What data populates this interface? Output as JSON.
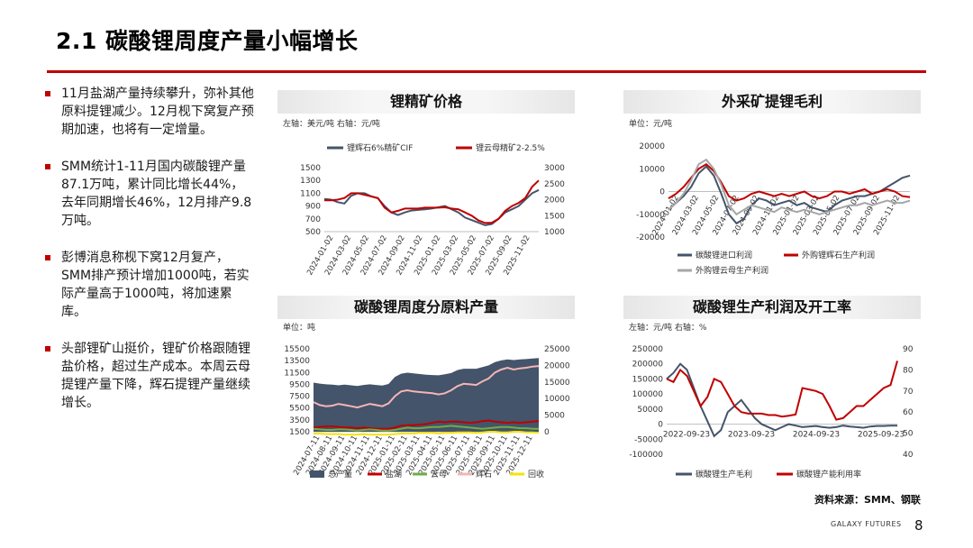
{
  "page": {
    "title": "2.1 碳酸锂周度产量小幅增长",
    "source": "资料来源：SMM、钢联",
    "company": "GALAXY FUTURES",
    "page_number": "8"
  },
  "bullets": [
    "11月盐湖产量持续攀升，弥补其他原料提锂减少。12月枧下窝复产预期加速，也将有一定增量。",
    "SMM统计1-11月国内碳酸锂产量87.1万吨，累计同比增长44%，去年同期增长46%，12月排产9.8万吨。",
    "彭博消息称枧下窝12月复产，SMM排产预计增加1000吨，若实际产量高于1000吨，将加速累库。",
    "头部锂矿山挺价，锂矿价格跟随锂盐价格，超过生产成本。本周云母提锂产量下降，辉石提锂产量继续增长。"
  ],
  "colors": {
    "accent": "#c00000",
    "dark": "#44546a",
    "green": "#70ad47",
    "pink": "#f4b6b6",
    "yellow": "#f5e20a",
    "grey": "#a6a6a6"
  },
  "chart_data": [
    {
      "id": "ore",
      "type": "line",
      "title": "锂精矿价格",
      "unit_note": "左轴：美元/吨  右轴：元/吨",
      "x_ticks": [
        "2024-01-02",
        "2024-03-02",
        "2024-05-02",
        "2024-07-02",
        "2024-09-02",
        "2024-11-02",
        "2025-01-02",
        "2025-03-02",
        "2025-05-02",
        "2025-07-02",
        "2025-09-02",
        "2025-11-02"
      ],
      "y_left_ticks": [
        "1500",
        "1300",
        "1100",
        "900",
        "700",
        "500"
      ],
      "y_right_ticks": [
        "3000",
        "2500",
        "2000",
        "1500",
        "1000"
      ],
      "ylim_left": [
        500,
        1500
      ],
      "ylim_right": [
        1000,
        3000
      ],
      "series": [
        {
          "name": "锂辉石6%精矿CIF",
          "axis": "left",
          "color": "#44546a",
          "values": [
            1010,
            1000,
            960,
            940,
            1060,
            1100,
            1100,
            1050,
            1020,
            900,
            800,
            760,
            800,
            830,
            840,
            850,
            860,
            880,
            900,
            850,
            800,
            720,
            680,
            640,
            600,
            620,
            700,
            800,
            850,
            900,
            1000,
            1100,
            1150
          ]
        },
        {
          "name": "锂云母精矿2-2.5%",
          "axis": "right",
          "color": "#c00000",
          "values": [
            1980,
            1980,
            2000,
            2050,
            2200,
            2200,
            2150,
            2100,
            2050,
            1750,
            1600,
            1650,
            1720,
            1720,
            1720,
            1750,
            1750,
            1750,
            1760,
            1720,
            1700,
            1600,
            1500,
            1350,
            1270,
            1280,
            1400,
            1650,
            1800,
            1900,
            2050,
            2400,
            2600
          ]
        }
      ]
    },
    {
      "id": "margin",
      "type": "line",
      "title": "外采矿提锂毛利",
      "unit_note": "单位：元/吨",
      "x_ticks": [
        "2024-01-02",
        "2024-03-02",
        "2024-05-02",
        "2024-07-02",
        "2024-09-02",
        "2024-11-02",
        "2025-01-02",
        "2025-03-02",
        "2025-05-02",
        "2025-07-02",
        "2025-09-02",
        "2025-11-02"
      ],
      "y_left_ticks": [
        "20000",
        "10000",
        "0",
        "-10000",
        "-20000"
      ],
      "ylim_left": [
        -20000,
        20000
      ],
      "series": [
        {
          "name": "碳酸锂进口利润",
          "axis": "left",
          "color": "#44546a",
          "values": [
            -8000,
            -5000,
            -2000,
            2000,
            8000,
            11000,
            7000,
            -1000,
            -10000,
            -14000,
            -12000,
            -6000,
            -3000,
            -4000,
            -6000,
            -5000,
            -4000,
            -6000,
            -5000,
            -7000,
            -8000,
            -9000,
            -6000,
            -4000,
            -3000,
            -2000,
            -2000,
            -1000,
            0,
            2000,
            4000,
            6000,
            7000
          ]
        },
        {
          "name": "外购锂辉石生产利润",
          "axis": "left",
          "color": "#c00000",
          "values": [
            -3000,
            -1000,
            2000,
            6000,
            10000,
            12000,
            9000,
            4000,
            -2000,
            -4000,
            -3000,
            -1000,
            0,
            -1000,
            -2000,
            -1000,
            -2000,
            -1000,
            0,
            -2000,
            -3000,
            -2000,
            0,
            0,
            -1000,
            0,
            1000,
            -1000,
            0,
            1000,
            0,
            -2000,
            -2500
          ]
        },
        {
          "name": "外购锂云母生产利润",
          "axis": "left",
          "color": "#a6a6a6",
          "values": [
            -8000,
            -5000,
            -1000,
            5000,
            12000,
            14000,
            10000,
            3000,
            -6000,
            -10000,
            -8000,
            -6000,
            -7000,
            -8000,
            -9000,
            -7000,
            -8000,
            -9000,
            -8000,
            -9000,
            -10000,
            -9000,
            -8000,
            -7000,
            -6000,
            -6000,
            -5000,
            -6000,
            -5000,
            -4000,
            -5000,
            -5000,
            -4000
          ]
        }
      ]
    },
    {
      "id": "weekly",
      "type": "area",
      "title": "碳酸锂周度分原料产量",
      "unit_note": "单位：吨",
      "x_ticks": [
        "2024-07-11",
        "2024-08-11",
        "2024-09-11",
        "2024-10-11",
        "2024-11-11",
        "2024-12-11",
        "2025-01-11",
        "2025-02-11",
        "2025-03-11",
        "2025-04-11",
        "2025-05-11",
        "2025-06-11",
        "2025-07-11",
        "2025-08-11",
        "2025-09-11",
        "2025-10-11",
        "2025-11-11",
        "2025-12-11"
      ],
      "y_left_ticks": [
        "15500",
        "13500",
        "11500",
        "9500",
        "7500",
        "5500",
        "3500",
        "1500"
      ],
      "y_right_ticks": [
        "25000",
        "20000",
        "15000",
        "10000",
        "5000",
        "0"
      ],
      "ylim_left": [
        1500,
        15500
      ],
      "ylim_right": [
        0,
        25000
      ],
      "series": [
        {
          "name": "总产量",
          "axis": "right",
          "color": "#44546a",
          "values": [
            14800,
            14500,
            14300,
            14200,
            14000,
            14200,
            14000,
            13800,
            14100,
            14300,
            14100,
            13900,
            14400,
            16500,
            17500,
            17800,
            17600,
            17400,
            17200,
            17100,
            17000,
            17300,
            17700,
            18600,
            19000,
            19000,
            19000,
            19500,
            20000,
            21000,
            21500,
            21800,
            21600,
            21800,
            21900,
            22100,
            22200
          ]
        },
        {
          "name": "盐湖",
          "axis": "left",
          "color": "#c00000",
          "values": [
            2200,
            2300,
            2400,
            2400,
            2300,
            2200,
            2200,
            2100,
            2200,
            2100,
            2000,
            2000,
            2000,
            2200,
            2500,
            2600,
            2600,
            2700,
            2800,
            3000,
            3200,
            3100,
            3200,
            3200,
            3100,
            3000,
            3100,
            3300,
            3400,
            3200,
            3100,
            3000,
            3100,
            3000,
            3100,
            3200,
            3300
          ]
        },
        {
          "name": "云母",
          "axis": "left",
          "color": "#70ad47",
          "values": [
            2000,
            1900,
            1800,
            1800,
            1900,
            1900,
            1800,
            1700,
            1800,
            1900,
            1800,
            1700,
            1700,
            1800,
            2000,
            2200,
            2100,
            2100,
            2200,
            2300,
            2300,
            2400,
            2500,
            2400,
            2300,
            2200,
            2100,
            2000,
            2100,
            2200,
            2300,
            2300,
            2200,
            2100,
            2100,
            2000,
            2000
          ]
        },
        {
          "name": "辉石",
          "axis": "left",
          "color": "#f4b6b6",
          "values": [
            6500,
            6000,
            5800,
            5900,
            6200,
            6000,
            5800,
            5600,
            5900,
            6200,
            6000,
            5800,
            6300,
            7500,
            8300,
            8500,
            8300,
            8200,
            8100,
            8000,
            7800,
            8000,
            8500,
            9200,
            9600,
            9500,
            9400,
            10000,
            10500,
            11500,
            12000,
            12300,
            12000,
            12200,
            12300,
            12500,
            12600
          ]
        },
        {
          "name": "回收",
          "axis": "left",
          "color": "#f5e20a",
          "values": [
            1200,
            1200,
            1100,
            1100,
            1100,
            1000,
            1000,
            1000,
            1100,
            1000,
            1000,
            1000,
            1000,
            1100,
            1200,
            1200,
            1200,
            1300,
            1300,
            1300,
            1200,
            1300,
            1300,
            1400,
            1400,
            1400,
            1300,
            1400,
            1500,
            1500,
            1400,
            1400,
            1500,
            1500,
            1400,
            1400,
            1300
          ]
        }
      ]
    },
    {
      "id": "profit",
      "type": "line",
      "title": "碳酸锂生产利润及开工率",
      "unit_note": "左轴：元/吨  右轴：%",
      "x_ticks": [
        "2022-09-23",
        "2023-09-23",
        "2024-09-23",
        "2025-09-23"
      ],
      "y_left_ticks": [
        "250000",
        "200000",
        "150000",
        "100000",
        "50000",
        "0",
        "-50000",
        "-100000"
      ],
      "y_right_ticks": [
        "90",
        "80",
        "70",
        "60",
        "50",
        "40"
      ],
      "ylim_left": [
        -100000,
        250000
      ],
      "ylim_right": [
        40,
        90
      ],
      "series": [
        {
          "name": "碳酸锂生产毛利",
          "axis": "left",
          "color": "#44546a",
          "values": [
            150000,
            170000,
            200000,
            180000,
            120000,
            60000,
            10000,
            -40000,
            -20000,
            40000,
            60000,
            80000,
            50000,
            20000,
            0,
            -10000,
            -20000,
            -10000,
            0,
            -5000,
            -10000,
            -8000,
            -6000,
            -10000,
            -12000,
            -10000,
            -5000,
            -8000,
            -10000,
            -12000,
            -8000,
            -6000,
            -6000,
            -5000,
            -5000
          ]
        },
        {
          "name": "碳酸锂产能利用率",
          "axis": "left",
          "color": "#c00000",
          "values": [
            150000,
            140000,
            180000,
            160000,
            110000,
            60000,
            90000,
            150000,
            140000,
            100000,
            60000,
            40000,
            35000,
            35000,
            35000,
            30000,
            30000,
            25000,
            28000,
            32000,
            120000,
            115000,
            110000,
            100000,
            60000,
            15000,
            20000,
            40000,
            60000,
            60000,
            80000,
            100000,
            120000,
            130000,
            210000
          ]
        }
      ]
    }
  ]
}
